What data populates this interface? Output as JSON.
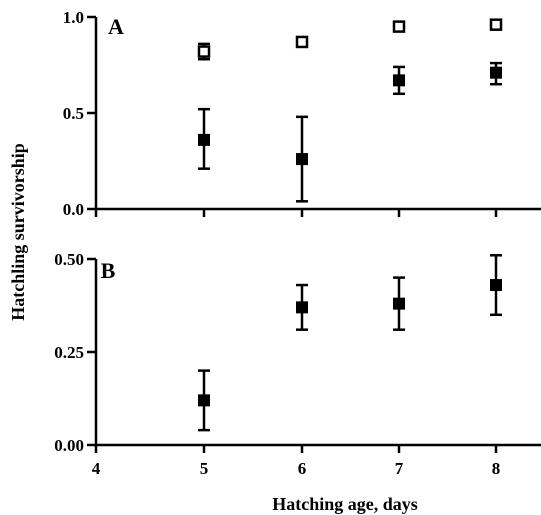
{
  "chart_data": [
    {
      "panel": "A",
      "type": "scatter",
      "x_ticks": [
        4,
        5,
        6,
        7,
        8
      ],
      "y_ticks": [
        "0.0",
        "0.5",
        "1.0"
      ],
      "ylim": [
        0,
        1.0
      ],
      "xlim": [
        4,
        8.5
      ],
      "series": [
        {
          "marker": "open-square",
          "points": [
            {
              "x": 5,
              "y": 0.82,
              "err_low": 0.78,
              "err_high": 0.86
            },
            {
              "x": 6,
              "y": 0.87,
              "err_low": 0.87,
              "err_high": 0.87
            },
            {
              "x": 7,
              "y": 0.95,
              "err_low": 0.95,
              "err_high": 0.95
            },
            {
              "x": 8,
              "y": 0.96,
              "err_low": 0.95,
              "err_high": 0.97
            }
          ]
        },
        {
          "marker": "filled-square",
          "points": [
            {
              "x": 5,
              "y": 0.36,
              "err_low": 0.21,
              "err_high": 0.52
            },
            {
              "x": 6,
              "y": 0.26,
              "err_low": 0.04,
              "err_high": 0.48
            },
            {
              "x": 7,
              "y": 0.67,
              "err_low": 0.6,
              "err_high": 0.74
            },
            {
              "x": 8,
              "y": 0.71,
              "err_low": 0.65,
              "err_high": 0.76
            }
          ]
        }
      ]
    },
    {
      "panel": "B",
      "type": "scatter",
      "x_ticks": [
        4,
        5,
        6,
        7,
        8
      ],
      "y_ticks": [
        "0.00",
        "0.25",
        "0.50"
      ],
      "ylim": [
        0,
        0.5
      ],
      "xlim": [
        4,
        8.5
      ],
      "series": [
        {
          "marker": "filled-square",
          "points": [
            {
              "x": 5,
              "y": 0.12,
              "err_low": 0.04,
              "err_high": 0.2
            },
            {
              "x": 6,
              "y": 0.37,
              "err_low": 0.31,
              "err_high": 0.43
            },
            {
              "x": 7,
              "y": 0.38,
              "err_low": 0.31,
              "err_high": 0.45
            },
            {
              "x": 8,
              "y": 0.43,
              "err_low": 0.35,
              "err_high": 0.51
            }
          ]
        }
      ]
    }
  ],
  "ylabel": "Hatchling survivorship",
  "xlabel": "Hatching age, days",
  "colors": {
    "ink": "#000000",
    "background": "#ffffff"
  }
}
